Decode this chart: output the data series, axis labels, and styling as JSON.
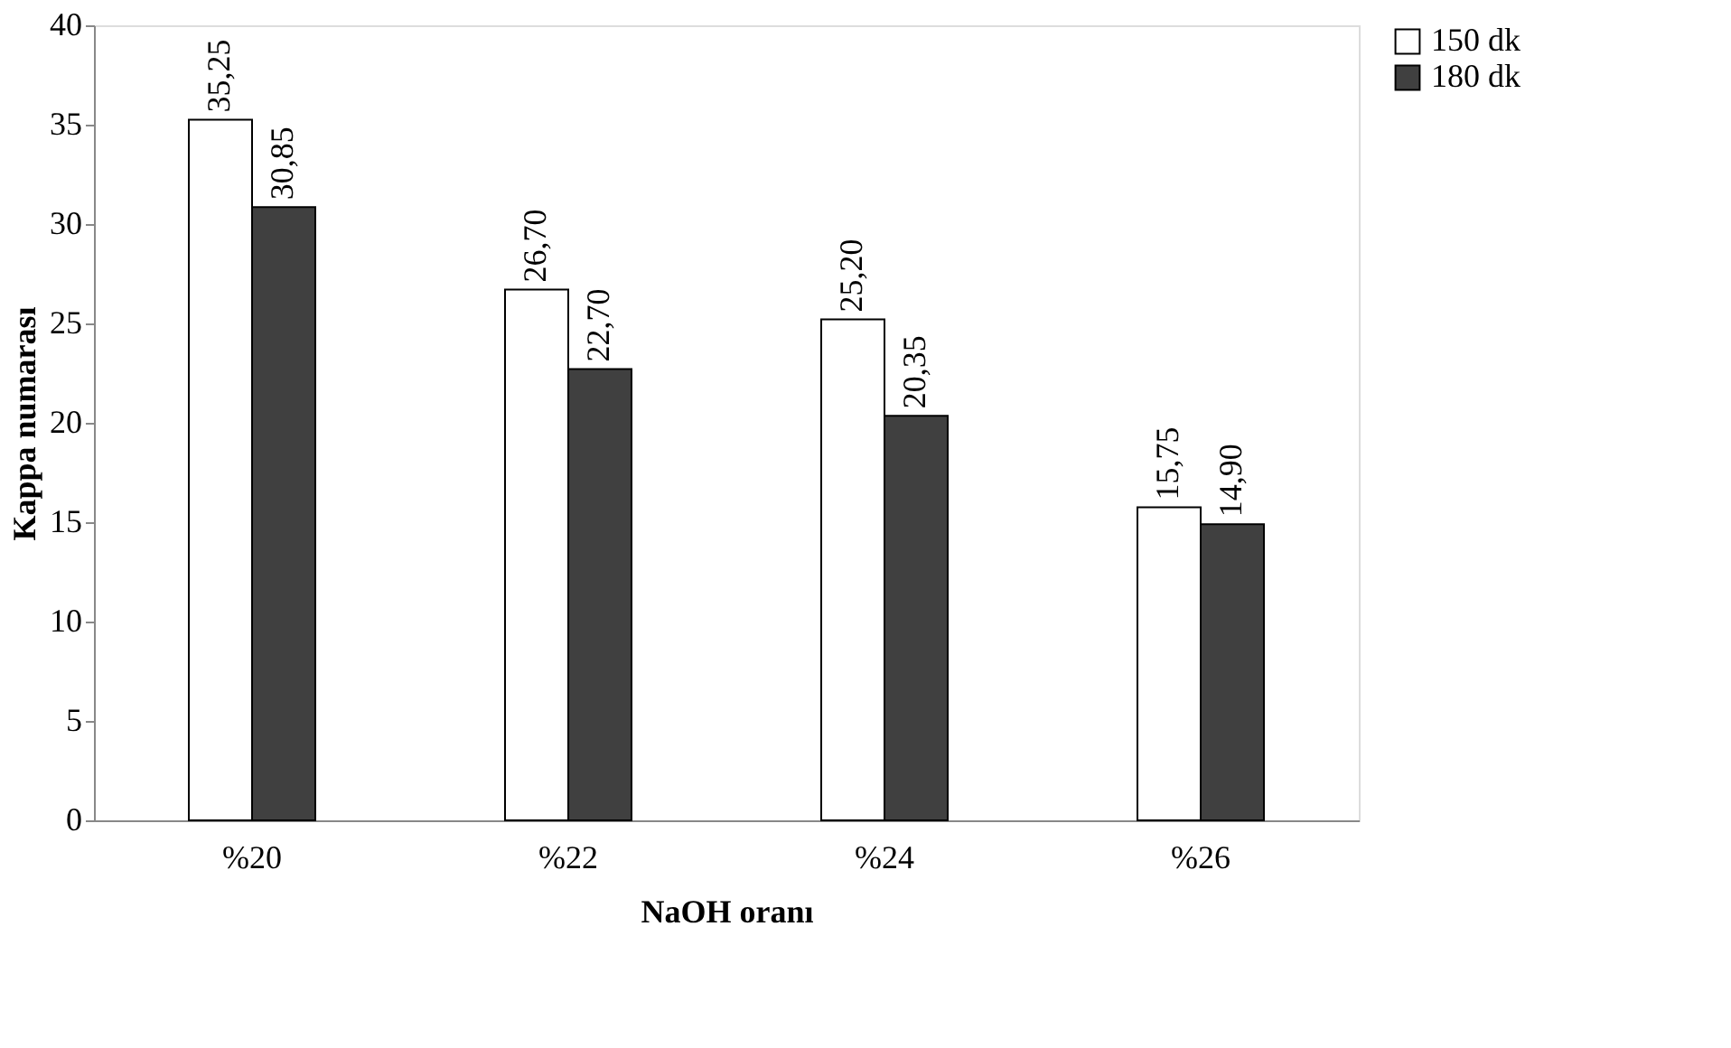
{
  "chart_data": {
    "type": "bar",
    "xlabel": "NaOH oranı",
    "ylabel": "Kappa numarası",
    "categories": [
      "%20",
      "%22",
      "%24",
      "%26"
    ],
    "series": [
      {
        "name": "150 dk",
        "color": "#ffffff",
        "values": [
          35.25,
          26.7,
          25.2,
          15.75
        ],
        "value_labels": [
          "35,25",
          "26,70",
          "25,20",
          "15,75"
        ]
      },
      {
        "name": "180 dk",
        "color": "#404040",
        "values": [
          30.85,
          22.7,
          20.35,
          14.9
        ],
        "value_labels": [
          "30,85",
          "22,70",
          "20,35",
          "14,90"
        ]
      }
    ],
    "ylim": [
      0,
      40
    ],
    "yticks": [
      0,
      5,
      10,
      15,
      20,
      25,
      30,
      35,
      40
    ],
    "grid": false,
    "legend": "right"
  }
}
